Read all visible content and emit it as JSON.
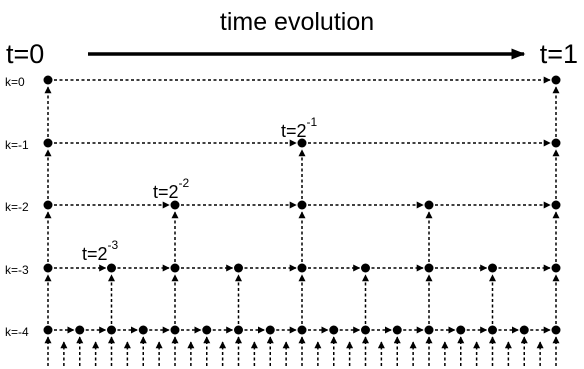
{
  "header": {
    "title": "time evolution",
    "t_start": "t=0",
    "t_end": "t=1"
  },
  "levels": [
    {
      "label": "k=0",
      "k": 0
    },
    {
      "label": "k=-1",
      "k": -1
    },
    {
      "label": "k=-2",
      "k": -2
    },
    {
      "label": "k=-3",
      "k": -3
    },
    {
      "label": "k=-4",
      "k": -4
    }
  ],
  "step_annotations": [
    {
      "k": -1,
      "base": "t=2",
      "exponent": "-1"
    },
    {
      "k": -2,
      "base": "t=2",
      "exponent": "-2"
    },
    {
      "k": -3,
      "base": "t=2",
      "exponent": "-3"
    }
  ],
  "colors": {
    "ink": "#000000",
    "background": "#ffffff"
  }
}
